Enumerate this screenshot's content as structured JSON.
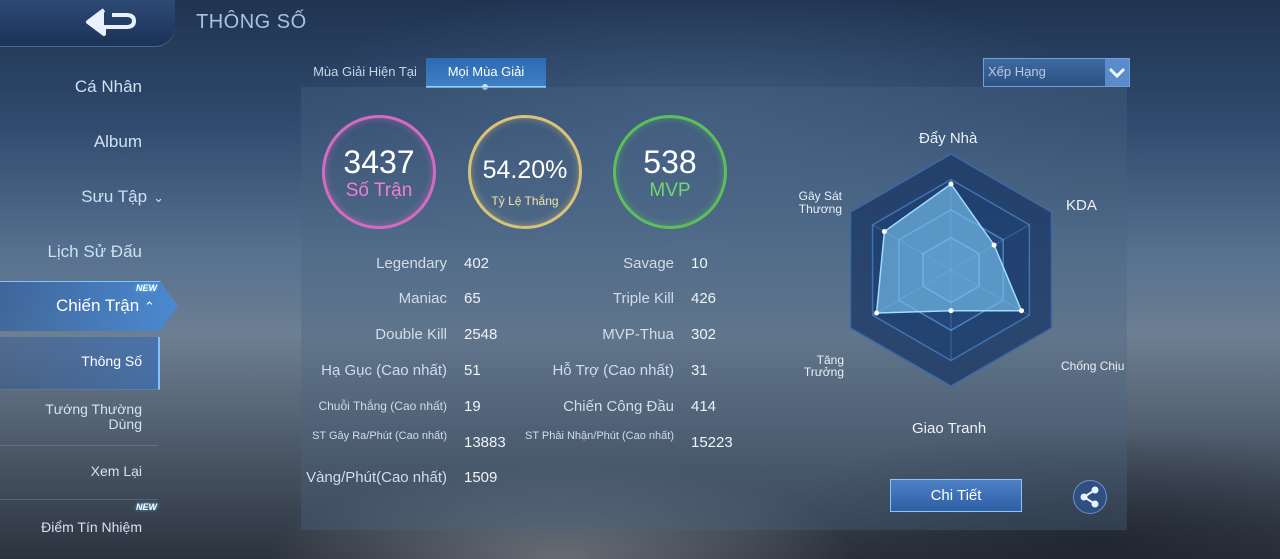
{
  "header": {
    "title": "THÔNG SỐ",
    "back_icon": "back-arrow-icon"
  },
  "sidebar": {
    "items": [
      {
        "label": "Cá Nhân"
      },
      {
        "label": "Album"
      },
      {
        "label": "Sưu Tập",
        "icon": "chevron-down-icon"
      },
      {
        "label": "Lịch Sử Đấu"
      },
      {
        "label": "Chiến Trận",
        "badge": "NEW",
        "icon": "chevron-up-icon"
      }
    ],
    "subitems": [
      {
        "label": "Thông Số"
      },
      {
        "label": "Tướng Thường Dùng"
      },
      {
        "label": "Xem Lại"
      },
      {
        "label": "Điểm Tín Nhiệm",
        "badge": "NEW"
      }
    ]
  },
  "tabs": [
    {
      "label": "Mùa Giải Hiện Tại"
    },
    {
      "label": "Mọi Mùa Giải"
    }
  ],
  "filter": {
    "selected": "Xếp Hạng",
    "icon": "chevron-down-icon"
  },
  "summary": [
    {
      "value": "3437",
      "label": "Số Trận",
      "color": "#e06cc8"
    },
    {
      "value": "54.20%",
      "label": "Tỷ Lệ Thắng",
      "color": "#e8d27a"
    },
    {
      "value": "538",
      "label": "MVP",
      "color": "#6bd46b"
    }
  ],
  "stats_left": [
    {
      "label": "Legendary",
      "value": "402"
    },
    {
      "label": "Maniac",
      "value": "65"
    },
    {
      "label": "Double Kill",
      "value": "2548"
    },
    {
      "label": "Hạ Gục (Cao nhất)",
      "value": "51"
    },
    {
      "label": "Chuỗi Thắng (Cao nhất)",
      "value": "19"
    },
    {
      "label": "ST Gây Ra/Phút (Cao nhất)",
      "value": "13883"
    },
    {
      "label": "Vàng/Phút(Cao nhất)",
      "value": "1509"
    }
  ],
  "stats_right": [
    {
      "label": "Savage",
      "value": "10"
    },
    {
      "label": "Triple Kill",
      "value": "426"
    },
    {
      "label": "MVP-Thua",
      "value": "302"
    },
    {
      "label": "Hỗ Trợ (Cao nhất)",
      "value": "31"
    },
    {
      "label": "Chiến Công Đầu",
      "value": "414"
    },
    {
      "label": "ST Phải Nhận/Phút (Cao nhất)",
      "value": "15223"
    }
  ],
  "radar": {
    "axes": [
      "Đẩy Nhà",
      "KDA",
      "Chống Chịu",
      "Giao Tranh",
      "Tăng Trưởng",
      "Gây Sát Thương"
    ],
    "levels": [
      0.95,
      0.55,
      0.9,
      0.45,
      0.95,
      0.85
    ]
  },
  "actions": {
    "detail_label": "Chi Tiết",
    "share_icon": "share-icon"
  }
}
